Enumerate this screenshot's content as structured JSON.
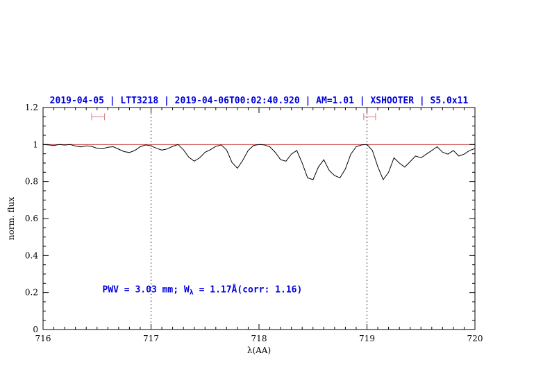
{
  "colors": {
    "title": "#0000dd",
    "annotation": "#0000dd",
    "spectrum": "#000000",
    "continuum": "#cc4444",
    "marker": "#dd7777",
    "frame": "#000000",
    "guide": "#000000"
  },
  "chart_data": {
    "type": "line",
    "title": "2019-04-05 | LTT3218 | 2019-04-06T00:02:40.920 | AM=1.01 | XSHOOTER | S5.0x11",
    "xlabel": "λ(AA)",
    "ylabel": "norm. flux",
    "xlim": [
      716,
      720
    ],
    "ylim": [
      0,
      1.2
    ],
    "grid": false,
    "legend": "none",
    "xticks": [
      716,
      717,
      718,
      719,
      720
    ],
    "xtick_labels": [
      "716",
      "717",
      "718",
      "719",
      "720"
    ],
    "yticks": [
      0,
      0.2,
      0.4,
      0.6,
      0.8,
      1,
      1.2
    ],
    "ytick_labels": [
      "0",
      "0.2",
      "0.4",
      "0.6",
      "0.8",
      "1",
      "1.2"
    ],
    "x_minor_step": 0.1,
    "y_minor_step": 0.05,
    "guides_x": [
      717,
      719
    ],
    "continuum_y": 1.0,
    "range_markers": [
      {
        "x0": 716.45,
        "x1": 716.57,
        "y": 1.15
      },
      {
        "x0": 718.97,
        "x1": 719.08,
        "y": 1.15
      }
    ],
    "annotation": {
      "x": 716.55,
      "y": 0.2,
      "parts": [
        "PWV  =  3.03 mm; W",
        "λ",
        "  =  1.17Å(corr: 1.16)"
      ]
    },
    "series": [
      {
        "name": "telluric-spectrum",
        "x": [
          716,
          716.05,
          716.1,
          716.15,
          716.2,
          716.25,
          716.3,
          716.35,
          716.4,
          716.45,
          716.5,
          716.55,
          716.6,
          716.65,
          716.7,
          716.75,
          716.8,
          716.85,
          716.9,
          716.95,
          717,
          717.05,
          717.1,
          717.15,
          717.2,
          717.25,
          717.3,
          717.35,
          717.4,
          717.45,
          717.5,
          717.55,
          717.6,
          717.65,
          717.7,
          717.75,
          717.8,
          717.85,
          717.9,
          717.95,
          718,
          718.05,
          718.1,
          718.15,
          718.2,
          718.25,
          718.3,
          718.35,
          718.4,
          718.45,
          718.5,
          718.55,
          718.6,
          718.65,
          718.7,
          718.75,
          718.8,
          718.85,
          718.9,
          718.95,
          719,
          719.05,
          719.1,
          719.15,
          719.2,
          719.25,
          719.3,
          719.35,
          719.4,
          719.45,
          719.5,
          719.55,
          719.6,
          719.65,
          719.7,
          719.75,
          719.8,
          719.85,
          719.9,
          719.95,
          720
        ],
        "y": [
          1.0,
          0.998,
          0.995,
          1.0,
          0.997,
          1.0,
          0.992,
          0.987,
          0.993,
          0.99,
          0.98,
          0.977,
          0.985,
          0.988,
          0.975,
          0.962,
          0.957,
          0.968,
          0.988,
          0.998,
          0.993,
          0.98,
          0.97,
          0.976,
          0.99,
          1.0,
          0.972,
          0.932,
          0.91,
          0.928,
          0.958,
          0.972,
          0.99,
          0.998,
          0.97,
          0.903,
          0.872,
          0.915,
          0.968,
          0.995,
          1.0,
          0.998,
          0.988,
          0.958,
          0.918,
          0.91,
          0.948,
          0.968,
          0.9,
          0.82,
          0.81,
          0.878,
          0.918,
          0.86,
          0.832,
          0.82,
          0.868,
          0.948,
          0.988,
          0.998,
          1.0,
          0.968,
          0.88,
          0.81,
          0.85,
          0.928,
          0.9,
          0.878,
          0.908,
          0.938,
          0.928,
          0.948,
          0.968,
          0.988,
          0.958,
          0.948,
          0.968,
          0.938,
          0.948,
          0.968,
          0.978
        ]
      }
    ]
  }
}
